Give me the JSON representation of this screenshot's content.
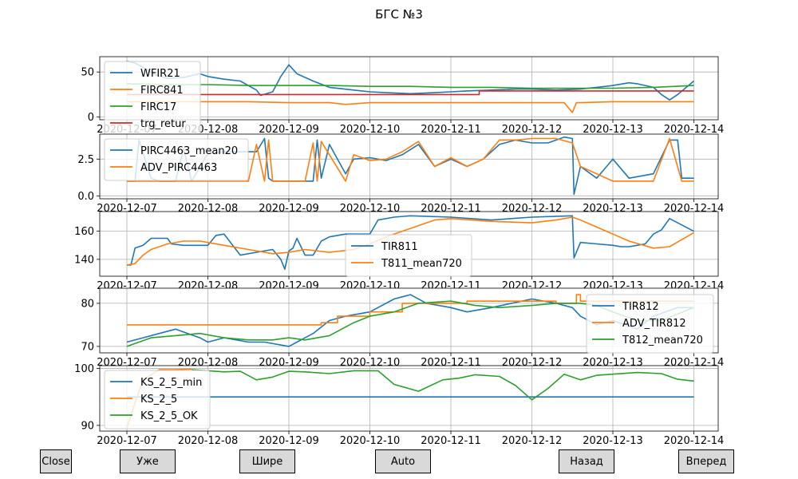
{
  "title": "БГС №3",
  "buttons": {
    "close": "Close",
    "narrower": "Уже",
    "wider": "Шире",
    "auto": "Auto",
    "back": "Назад",
    "forward": "Вперед"
  },
  "chart_data": [
    {
      "type": "line",
      "xticks": [
        "2020-12-07",
        "2020-12-08",
        "2020-12-09",
        "2020-12-10",
        "2020-12-11",
        "2020-12-12",
        "2020-12-13",
        "2020-12-14"
      ],
      "ylim": [
        -3,
        67
      ],
      "yticks": [
        0,
        50
      ],
      "grid": true,
      "legend": "top-left",
      "series": [
        {
          "name": "WFIR21",
          "color": "#1f77b4",
          "x": [
            0,
            0.1,
            0.2,
            0.35,
            0.5,
            0.7,
            0.9,
            1.0,
            1.2,
            1.4,
            1.6,
            1.65,
            1.8,
            1.9,
            2.0,
            2.1,
            2.3,
            2.5,
            2.8,
            3.0,
            3.2,
            3.5,
            3.8,
            4.0,
            4.2,
            4.5,
            4.8,
            5.0,
            5.3,
            5.6,
            5.8,
            6.0,
            6.2,
            6.3,
            6.5,
            6.6,
            6.7,
            6.8,
            7.0
          ],
          "y": [
            62,
            60,
            55,
            47,
            43,
            44,
            48,
            45,
            42,
            40,
            30,
            24,
            28,
            45,
            58,
            48,
            40,
            33,
            30,
            28,
            27,
            26,
            27,
            28,
            29,
            30,
            31,
            31,
            30,
            31,
            33,
            35,
            38,
            37,
            33,
            25,
            19,
            25,
            40
          ]
        },
        {
          "name": "FIRC841",
          "color": "#ff7f0e",
          "x": [
            0,
            0.5,
            1.0,
            1.5,
            2.0,
            2.5,
            2.7,
            3.0,
            3.5,
            4.0,
            4.5,
            5.0,
            5.4,
            5.5,
            5.55,
            5.6,
            6.0,
            6.5,
            7.0
          ],
          "y": [
            17,
            17,
            17,
            17,
            16,
            16,
            14,
            16,
            16,
            16,
            16,
            16,
            16,
            5,
            16,
            16,
            17,
            17,
            17
          ]
        },
        {
          "name": "FIRC17",
          "color": "#2ca02c",
          "x": [
            0,
            0.5,
            1.0,
            1.5,
            2.0,
            2.5,
            3.0,
            3.5,
            4.0,
            4.5,
            5.0,
            5.5,
            6.0,
            6.5,
            7.0
          ],
          "y": [
            37,
            36,
            36,
            35,
            35,
            35,
            34,
            34,
            33,
            33,
            32,
            32,
            32,
            33,
            35
          ]
        },
        {
          "name": "trg_retur",
          "color": "#d62728",
          "x": [
            0,
            4.35,
            4.35,
            7.0
          ],
          "y": [
            25,
            25,
            29,
            29
          ]
        }
      ]
    },
    {
      "type": "line",
      "xticks": [
        "2020-12-07",
        "2020-12-08",
        "2020-12-09",
        "2020-12-10",
        "2020-12-11",
        "2020-12-12",
        "2020-12-13",
        "2020-12-14"
      ],
      "ylim": [
        -0.2,
        4.2
      ],
      "yticks": [
        0.0,
        2.5
      ],
      "yticklabels": [
        "0.0",
        "2.5"
      ],
      "grid": true,
      "legend": "top-left",
      "series": [
        {
          "name": "PIRC4463_mean20",
          "color": "#1f77b4",
          "x": [
            0,
            0.1,
            0.15,
            0.3,
            0.4,
            0.6,
            0.7,
            0.8,
            1.0,
            1.2,
            1.4,
            1.6,
            1.7,
            1.75,
            1.8,
            2.0,
            2.3,
            2.35,
            2.4,
            2.5,
            2.7,
            2.8,
            3.0,
            3.2,
            3.4,
            3.6,
            3.8,
            4.0,
            4.2,
            4.4,
            4.6,
            4.8,
            5.0,
            5.2,
            5.4,
            5.5,
            5.52,
            5.6,
            5.8,
            6.0,
            6.2,
            6.5,
            6.7,
            6.8,
            6.85,
            7.0
          ],
          "y": [
            1.0,
            1.0,
            3.8,
            1.2,
            1.0,
            1.0,
            3.2,
            1.0,
            2.9,
            3.0,
            3.0,
            3.0,
            3.9,
            1.2,
            1.0,
            1.0,
            1.0,
            3.8,
            1.2,
            3.5,
            1.5,
            2.5,
            2.6,
            2.4,
            2.8,
            3.5,
            2.0,
            2.5,
            2.0,
            2.5,
            3.5,
            3.8,
            3.6,
            3.6,
            4.0,
            3.9,
            0.1,
            2.0,
            1.2,
            2.5,
            1.2,
            1.5,
            3.8,
            3.8,
            1.2,
            1.2
          ]
        },
        {
          "name": "ADV_PIRC4463",
          "color": "#ff7f0e",
          "x": [
            0,
            0.5,
            0.8,
            1.0,
            1.5,
            1.6,
            1.7,
            1.75,
            1.8,
            2.2,
            2.3,
            2.35,
            2.4,
            2.7,
            2.8,
            3.0,
            3.2,
            3.4,
            3.6,
            3.8,
            4.0,
            4.2,
            4.4,
            4.6,
            4.8,
            5.0,
            5.3,
            5.5,
            5.6,
            6.0,
            6.5,
            6.7,
            6.85,
            7.0
          ],
          "y": [
            1.0,
            1.0,
            1.0,
            1.0,
            1.0,
            3.5,
            1.0,
            3.8,
            1.0,
            1.0,
            3.6,
            1.0,
            3.7,
            1.0,
            2.8,
            2.4,
            2.5,
            3.0,
            3.7,
            2.0,
            2.6,
            2.0,
            2.5,
            3.8,
            3.8,
            3.9,
            3.9,
            3.6,
            2.0,
            1.0,
            1.0,
            3.9,
            1.0,
            1.0
          ]
        }
      ]
    },
    {
      "type": "line",
      "xticks": [
        "2020-12-07",
        "2020-12-08",
        "2020-12-09",
        "2020-12-10",
        "2020-12-11",
        "2020-12-12",
        "2020-12-13",
        "2020-12-14"
      ],
      "ylim": [
        128,
        174
      ],
      "yticks": [
        140,
        160
      ],
      "grid": true,
      "legend": "center",
      "series": [
        {
          "name": "TIR811",
          "color": "#1f77b4",
          "x": [
            0,
            0.05,
            0.1,
            0.2,
            0.3,
            0.5,
            0.55,
            0.7,
            1.0,
            1.1,
            1.2,
            1.4,
            1.8,
            1.9,
            1.95,
            2.0,
            2.05,
            2.1,
            2.2,
            2.3,
            2.4,
            2.5,
            2.7,
            3.0,
            3.1,
            3.3,
            3.5,
            4.0,
            4.5,
            5.0,
            5.5,
            5.5,
            5.52,
            5.6,
            5.8,
            6.0,
            6.1,
            6.2,
            6.3,
            6.4,
            6.5,
            6.6,
            6.7,
            7.0
          ],
          "y": [
            136,
            136,
            148,
            150,
            155,
            155,
            151,
            150,
            150,
            157,
            158,
            143,
            147,
            140,
            133,
            146,
            148,
            155,
            143,
            143,
            153,
            156,
            158,
            158,
            168,
            170,
            171,
            170,
            168,
            170,
            171,
            170,
            141,
            152,
            151,
            150,
            149,
            149,
            150,
            151,
            158,
            161,
            169,
            160
          ]
        },
        {
          "name": "T811_mean720",
          "color": "#ff7f0e",
          "x": [
            0,
            0.1,
            0.2,
            0.3,
            0.5,
            0.7,
            0.9,
            1.0,
            1.2,
            1.5,
            1.8,
            2.0,
            2.2,
            2.5,
            2.8,
            3.0,
            3.2,
            3.5,
            3.8,
            4.0,
            4.5,
            5.0,
            5.3,
            5.5,
            5.6,
            5.8,
            6.0,
            6.2,
            6.5,
            6.7,
            6.85,
            7.0
          ],
          "y": [
            136,
            137,
            143,
            147,
            151,
            153,
            153,
            152,
            150,
            147,
            144,
            145,
            147,
            145,
            147,
            151,
            156,
            162,
            168,
            169,
            167,
            166,
            168,
            170,
            168,
            163,
            158,
            153,
            148,
            149,
            154,
            159
          ]
        }
      ]
    },
    {
      "type": "line",
      "xticks": [
        "2020-12-07",
        "2020-12-08",
        "2020-12-09",
        "2020-12-10",
        "2020-12-11",
        "2020-12-12",
        "2020-12-13",
        "2020-12-14"
      ],
      "ylim": [
        68.5,
        83.5
      ],
      "yticks": [
        70,
        80
      ],
      "grid": true,
      "legend": "lower-right",
      "series": [
        {
          "name": "TIR812",
          "color": "#1f77b4",
          "x": [
            0,
            0.2,
            0.4,
            0.6,
            0.9,
            1.0,
            1.2,
            1.5,
            1.7,
            2.0,
            2.1,
            2.3,
            2.5,
            2.7,
            3.0,
            3.3,
            3.5,
            3.7,
            4.0,
            4.2,
            4.5,
            5.0,
            5.3,
            5.5,
            5.6,
            5.8,
            6.0,
            6.3,
            6.5,
            6.8,
            7.0
          ],
          "y": [
            71,
            72,
            73,
            74,
            72,
            71,
            72,
            71,
            71,
            70,
            71,
            73,
            76,
            77,
            78,
            81,
            82,
            80,
            79,
            78,
            79,
            81,
            80,
            79,
            77,
            75,
            76,
            74,
            77,
            79,
            79
          ]
        },
        {
          "name": "ADV_TIR812",
          "color": "#ff7f0e",
          "x": [
            0,
            2.4,
            2.4,
            2.6,
            2.6,
            3.0,
            3.0,
            3.4,
            3.4,
            4.2,
            4.2,
            5.3,
            5.3,
            5.55,
            5.55,
            5.6,
            5.6,
            7.0
          ],
          "y": [
            75,
            75,
            75.5,
            75.5,
            77,
            77,
            78,
            78,
            80,
            80,
            80.5,
            80.5,
            80,
            80,
            82,
            82,
            80.5,
            80.5
          ]
        },
        {
          "name": "T812_mean720",
          "color": "#2ca02c",
          "x": [
            0,
            0.3,
            0.6,
            0.9,
            1.2,
            1.5,
            1.8,
            2.0,
            2.2,
            2.5,
            2.8,
            3.0,
            3.3,
            3.6,
            4.0,
            4.3,
            4.6,
            5.0,
            5.3,
            5.6,
            5.8,
            6.0,
            6.3,
            6.6,
            6.8,
            7.0
          ],
          "y": [
            70,
            72,
            72.5,
            73,
            72,
            71.5,
            71.5,
            72,
            71.5,
            72.5,
            75.5,
            77,
            78,
            80,
            80.5,
            79.5,
            79,
            79.5,
            80,
            80,
            79.5,
            78,
            76,
            76,
            77.5,
            79
          ]
        }
      ]
    },
    {
      "type": "line",
      "xticks": [
        "2020-12-07",
        "2020-12-08",
        "2020-12-09",
        "2020-12-10",
        "2020-12-11",
        "2020-12-12",
        "2020-12-13",
        "2020-12-14"
      ],
      "ylim": [
        89,
        100.5
      ],
      "yticks": [
        90,
        100
      ],
      "grid": true,
      "legend": "top-left",
      "series": [
        {
          "name": "KS_2_5_min",
          "color": "#1f77b4",
          "x": [
            0,
            7.0
          ],
          "y": [
            95,
            95
          ]
        },
        {
          "name": "KS_2_5",
          "color": "#ff7f0e",
          "x": [
            0,
            0.1,
            0.2,
            0.4,
            0.6,
            0.8
          ],
          "y": [
            89.5,
            94,
            98,
            99.8,
            99.8,
            99.9
          ]
        },
        {
          "name": "KS_2_5_OK",
          "color": "#2ca02c",
          "x": [
            0.8,
            1.2,
            1.4,
            1.6,
            1.8,
            2.0,
            2.2,
            2.5,
            2.8,
            3.1,
            3.3,
            3.6,
            3.9,
            4.1,
            4.3,
            4.6,
            4.8,
            5.0,
            5.2,
            5.4,
            5.6,
            5.8,
            6.0,
            6.3,
            6.6,
            6.8,
            7.0
          ],
          "y": [
            99.8,
            99.4,
            99.5,
            98.0,
            98.5,
            99.5,
            99.4,
            99.1,
            99.6,
            99.6,
            97.2,
            96.0,
            98.0,
            98.3,
            98.9,
            98.6,
            97.0,
            94.5,
            96.5,
            99.0,
            98.0,
            98.8,
            99.0,
            99.3,
            99.1,
            98.1,
            97.8
          ]
        }
      ]
    }
  ]
}
